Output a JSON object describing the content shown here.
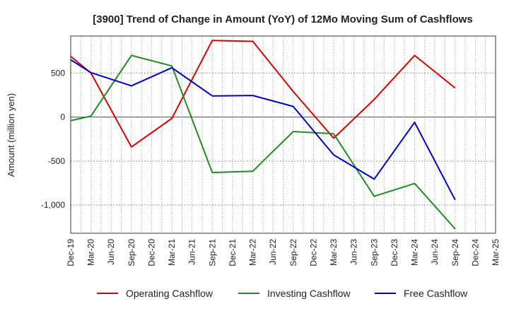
{
  "chart_data": {
    "type": "line",
    "title": "[3900]  Trend of Change in Amount (YoY) of 12Mo Moving Sum of Cashflows",
    "xlabel": "",
    "ylabel": "Amount (million yen)",
    "ylim": [
      -1320,
      920
    ],
    "yticks": [
      500,
      0,
      -500,
      -1000
    ],
    "ytick_labels": [
      "500",
      "0",
      "-500",
      "-1,000"
    ],
    "categories": [
      "Dec-19",
      "Mar-20",
      "Jun-20",
      "Sep-20",
      "Dec-20",
      "Mar-21",
      "Jun-21",
      "Sep-21",
      "Dec-21",
      "Mar-22",
      "Jun-22",
      "Sep-22",
      "Dec-22",
      "Mar-23",
      "Jun-23",
      "Sep-23",
      "Dec-23",
      "Mar-24",
      "Jun-24",
      "Sep-24",
      "Dec-24",
      "Mar-25"
    ],
    "grid": true,
    "legend_position": "bottom",
    "series": [
      {
        "name": "Operating Cashflow",
        "color": "#dd0000",
        "values": [
          690,
          500,
          null,
          -340,
          null,
          -15,
          null,
          870,
          null,
          860,
          null,
          290,
          null,
          -240,
          null,
          200,
          null,
          700,
          null,
          330,
          null,
          null
        ]
      },
      {
        "name": "Investing Cashflow",
        "color": "#228b22",
        "values": [
          -40,
          10,
          null,
          700,
          null,
          580,
          null,
          -630,
          null,
          -615,
          null,
          -165,
          null,
          -190,
          null,
          -900,
          null,
          -755,
          null,
          -1270,
          null,
          null
        ]
      },
      {
        "name": "Free Cashflow",
        "color": "#0000cc",
        "values": [
          650,
          505,
          null,
          355,
          null,
          560,
          null,
          240,
          null,
          245,
          null,
          120,
          null,
          -430,
          null,
          -705,
          null,
          -60,
          null,
          -940,
          null,
          null
        ]
      }
    ]
  }
}
